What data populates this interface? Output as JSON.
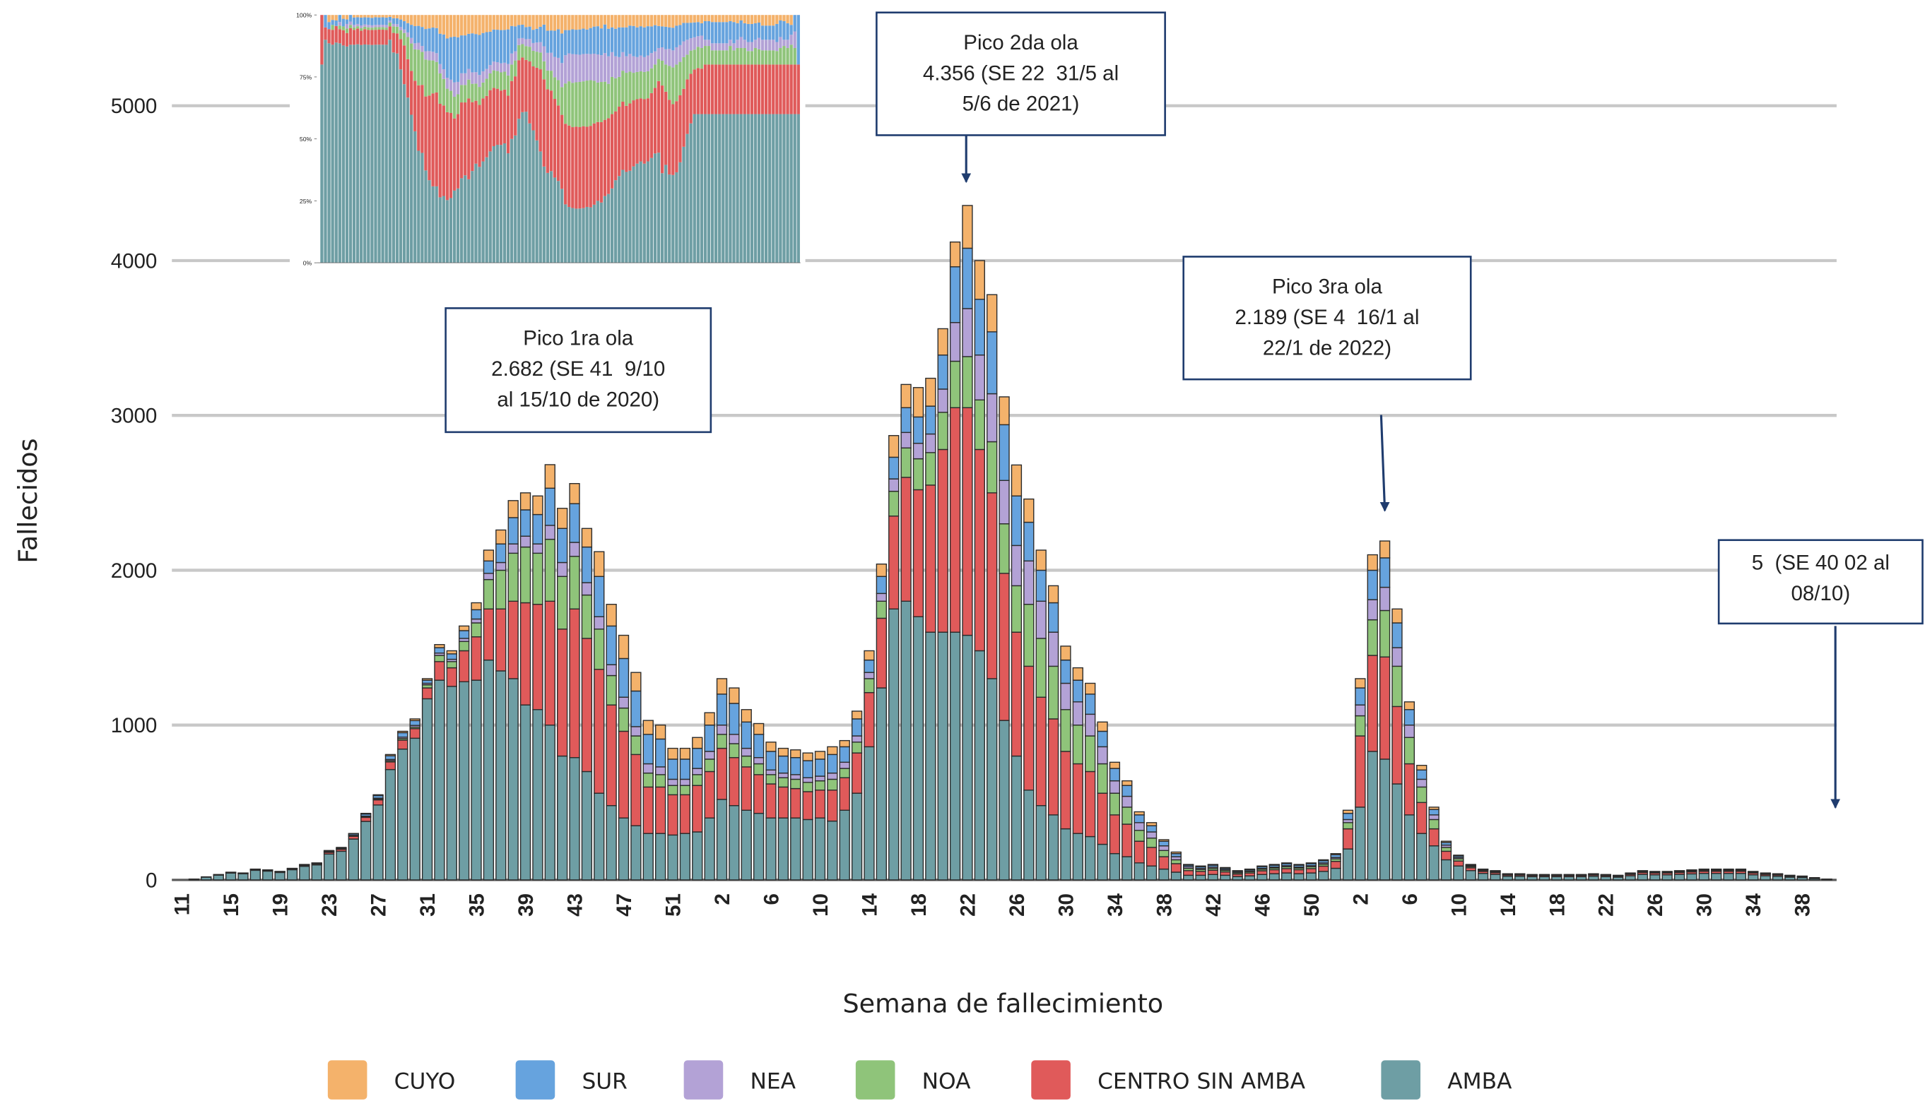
{
  "chart_data": {
    "type": "bar",
    "stacked": true,
    "ylabel": "Fallecidos",
    "xlabel": "Semana de fallecimiento",
    "ylim": [
      0,
      5000
    ],
    "yticks": [
      0,
      1000,
      2000,
      3000,
      4000,
      5000
    ],
    "grid": true,
    "legend": "bottom",
    "categories": [
      "11",
      null,
      null,
      null,
      "15",
      null,
      null,
      null,
      "19",
      null,
      null,
      null,
      "23",
      null,
      null,
      null,
      "27",
      null,
      null,
      null,
      "31",
      null,
      null,
      null,
      "35",
      null,
      null,
      null,
      "39",
      null,
      null,
      null,
      "43",
      null,
      null,
      null,
      "47",
      null,
      null,
      null,
      "51",
      null,
      null,
      null,
      "2",
      null,
      null,
      null,
      "6",
      null,
      null,
      null,
      "10",
      null,
      null,
      null,
      "14",
      null,
      null,
      null,
      "18",
      null,
      null,
      null,
      "22",
      null,
      null,
      null,
      "26",
      null,
      null,
      null,
      "30",
      null,
      null,
      null,
      "34",
      null,
      null,
      null,
      "38",
      null,
      null,
      null,
      "42",
      null,
      null,
      null,
      "46",
      null,
      null,
      null,
      "50",
      null,
      null,
      null,
      "2",
      null,
      null,
      null,
      "6",
      null,
      null,
      null,
      "10",
      null,
      null,
      null,
      "14",
      null,
      null,
      null,
      "18",
      null,
      null,
      null,
      "22",
      null,
      null,
      null,
      "26",
      null,
      null,
      null,
      "30",
      null,
      null,
      null,
      "34",
      null,
      null,
      null,
      "38",
      null,
      null
    ],
    "series": [
      {
        "name": "CUYO",
        "color": "#f4b26b",
        "values": [
          0,
          0,
          0,
          1,
          1,
          1,
          0,
          1,
          1,
          0,
          1,
          1,
          2,
          2,
          3,
          5,
          5,
          8,
          9,
          11,
          10,
          20,
          20,
          30,
          45,
          70,
          90,
          110,
          110,
          120,
          152,
          130,
          130,
          120,
          160,
          140,
          150,
          120,
          90,
          90,
          70,
          70,
          70,
          80,
          100,
          100,
          80,
          70,
          60,
          50,
          50,
          50,
          50,
          50,
          40,
          50,
          60,
          80,
          140,
          150,
          190,
          180,
          170,
          160,
          276,
          250,
          240,
          180,
          200,
          150,
          130,
          110,
          90,
          80,
          70,
          60,
          40,
          30,
          20,
          20,
          10,
          10,
          5,
          5,
          5,
          4,
          3,
          3,
          4,
          5,
          5,
          5,
          5,
          6,
          7,
          20,
          60,
          100,
          109,
          90,
          50,
          30,
          15,
          8,
          5,
          3,
          2,
          2,
          1,
          1,
          1,
          1,
          1,
          1,
          1,
          1,
          1,
          1,
          1,
          2,
          2,
          2,
          2,
          2,
          3,
          3,
          3,
          3,
          2,
          1,
          1,
          1,
          1,
          0,
          0
        ]
      },
      {
        "name": "SUR",
        "color": "#66a3de",
        "values": [
          0,
          0,
          1,
          1,
          1,
          1,
          2,
          2,
          1,
          2,
          3,
          3,
          6,
          6,
          9,
          13,
          17,
          24,
          29,
          31,
          20,
          35,
          35,
          50,
          60,
          80,
          120,
          170,
          170,
          190,
          240,
          220,
          250,
          230,
          260,
          250,
          250,
          230,
          190,
          180,
          130,
          130,
          130,
          170,
          200,
          200,
          170,
          150,
          120,
          110,
          110,
          110,
          110,
          120,
          100,
          110,
          80,
          110,
          140,
          160,
          170,
          180,
          220,
          360,
          390,
          360,
          400,
          360,
          320,
          250,
          200,
          190,
          150,
          140,
          130,
          100,
          80,
          70,
          50,
          40,
          30,
          20,
          10,
          10,
          12,
          8,
          7,
          8,
          11,
          12,
          13,
          12,
          13,
          14,
          18,
          40,
          110,
          190,
          190,
          160,
          100,
          60,
          35,
          17,
          10,
          6,
          4,
          3,
          3,
          3,
          3,
          3,
          3,
          3,
          3,
          3,
          3,
          2,
          3,
          4,
          4,
          4,
          4,
          4,
          4,
          4,
          4,
          4,
          4,
          3,
          3,
          2,
          1,
          1,
          1
        ]
      },
      {
        "name": "NEA",
        "color": "#b3a2d6",
        "values": [
          0,
          0,
          0,
          0,
          0,
          0,
          1,
          0,
          1,
          1,
          1,
          1,
          2,
          2,
          3,
          4,
          5,
          8,
          9,
          11,
          10,
          15,
          15,
          20,
          25,
          40,
          50,
          60,
          70,
          60,
          90,
          90,
          90,
          80,
          80,
          70,
          70,
          60,
          60,
          50,
          40,
          40,
          40,
          50,
          60,
          60,
          50,
          40,
          30,
          30,
          30,
          30,
          30,
          40,
          40,
          40,
          40,
          50,
          80,
          100,
          100,
          120,
          150,
          250,
          310,
          290,
          310,
          280,
          260,
          280,
          240,
          220,
          170,
          150,
          140,
          110,
          80,
          70,
          50,
          40,
          30,
          20,
          10,
          8,
          8,
          6,
          4,
          5,
          6,
          6,
          7,
          6,
          7,
          8,
          9,
          20,
          70,
          130,
          150,
          120,
          80,
          50,
          30,
          15,
          8,
          5,
          3,
          3,
          1,
          1,
          1,
          1,
          1,
          1,
          1,
          1,
          1,
          1,
          2,
          2,
          2,
          2,
          2,
          3,
          3,
          3,
          3,
          3,
          2,
          2,
          1,
          1,
          1,
          1,
          0
        ]
      },
      {
        "name": "NOA",
        "color": "#8fc47a",
        "values": [
          0,
          0,
          0,
          0,
          1,
          0,
          1,
          1,
          1,
          1,
          1,
          1,
          2,
          2,
          3,
          4,
          6,
          8,
          10,
          10,
          20,
          40,
          40,
          60,
          90,
          190,
          250,
          310,
          360,
          330,
          400,
          340,
          340,
          280,
          260,
          190,
          150,
          120,
          90,
          80,
          60,
          60,
          70,
          80,
          90,
          90,
          70,
          70,
          60,
          60,
          60,
          60,
          60,
          70,
          60,
          70,
          90,
          110,
          160,
          190,
          200,
          210,
          240,
          300,
          330,
          320,
          330,
          320,
          300,
          400,
          380,
          340,
          270,
          250,
          230,
          190,
          140,
          110,
          70,
          60,
          40,
          25,
          15,
          12,
          12,
          10,
          8,
          9,
          10,
          11,
          12,
          11,
          12,
          13,
          16,
          40,
          130,
          230,
          300,
          260,
          170,
          100,
          60,
          25,
          15,
          8,
          6,
          5,
          3,
          3,
          2,
          2,
          2,
          2,
          2,
          3,
          2,
          2,
          3,
          4,
          3,
          3,
          4,
          4,
          4,
          4,
          4,
          4,
          3,
          3,
          3,
          2,
          2,
          1,
          0
        ]
      },
      {
        "name": "CENTRO SIN AMBA",
        "color": "#e05a5a",
        "values": [
          0,
          1,
          1,
          2,
          3,
          3,
          4,
          4,
          3,
          5,
          6,
          7,
          11,
          13,
          18,
          26,
          33,
          49,
          58,
          62,
          70,
          120,
          120,
          200,
          280,
          330,
          400,
          500,
          660,
          680,
          800,
          820,
          960,
          860,
          800,
          650,
          560,
          460,
          300,
          300,
          260,
          250,
          300,
          300,
          330,
          310,
          280,
          250,
          220,
          200,
          190,
          180,
          180,
          200,
          210,
          260,
          350,
          450,
          600,
          800,
          820,
          950,
          1180,
          1450,
          1470,
          1300,
          1200,
          950,
          800,
          800,
          700,
          620,
          500,
          450,
          420,
          330,
          250,
          210,
          140,
          120,
          80,
          55,
          30,
          25,
          28,
          22,
          16,
          19,
          24,
          26,
          28,
          26,
          28,
          34,
          45,
          130,
          460,
          620,
          660,
          500,
          330,
          200,
          110,
          55,
          32,
          18,
          13,
          11,
          8,
          8,
          7,
          7,
          7,
          7,
          7,
          8,
          7,
          6,
          9,
          12,
          11,
          11,
          12,
          13,
          14,
          14,
          14,
          14,
          11,
          9,
          8,
          6,
          5,
          3,
          1
        ]
      },
      {
        "name": "AMBA",
        "color": "#6e9ea4",
        "values": [
          0,
          4,
          18,
          31,
          44,
          40,
          62,
          57,
          48,
          66,
          88,
          97,
          167,
          185,
          264,
          378,
          484,
          713,
          845,
          915,
          1170,
          1290,
          1250,
          1280,
          1290,
          1420,
          1350,
          1300,
          1130,
          1100,
          1000,
          800,
          790,
          700,
          560,
          480,
          400,
          350,
          300,
          300,
          290,
          300,
          310,
          400,
          520,
          480,
          450,
          430,
          400,
          400,
          400,
          390,
          400,
          380,
          450,
          560,
          860,
          1240,
          1750,
          1800,
          1700,
          1600,
          1600,
          1600,
          1580,
          1480,
          1300,
          1030,
          800,
          580,
          480,
          420,
          330,
          300,
          280,
          230,
          170,
          150,
          110,
          90,
          70,
          50,
          30,
          30,
          35,
          30,
          22,
          26,
          35,
          40,
          45,
          40,
          45,
          55,
          75,
          200,
          470,
          830,
          780,
          620,
          420,
          300,
          220,
          130,
          90,
          60,
          42,
          36,
          24,
          24,
          21,
          21,
          21,
          21,
          21,
          24,
          21,
          18,
          27,
          36,
          33,
          33,
          36,
          39,
          42,
          42,
          42,
          42,
          33,
          27,
          24,
          18,
          15,
          9,
          3
        ]
      }
    ],
    "annotations": [
      {
        "lines": [
          "Pico 1ra ola",
          "2.682 (SE 41  9/10",
          "al 15/10 de 2020)"
        ]
      },
      {
        "lines": [
          "Pico 2da ola",
          "4.356 (SE 22  31/5 al",
          "5/6 de 2021)"
        ]
      },
      {
        "lines": [
          "Pico 3ra ola",
          "2.189 (SE 4  16/1 al",
          "22/1 de 2022)"
        ]
      },
      {
        "lines": [
          "5  (SE 40 02 al",
          "08/10)"
        ]
      }
    ],
    "inset": {
      "stacking": "percent",
      "ylim": [
        0,
        100
      ],
      "yticks": [
        {
          "value": 0,
          "label": "0%"
        },
        {
          "value": 25,
          "label": "25%"
        },
        {
          "value": 50,
          "label": "50%"
        },
        {
          "value": 75,
          "label": "75%"
        },
        {
          "value": 100,
          "label": "100%"
        }
      ]
    }
  }
}
